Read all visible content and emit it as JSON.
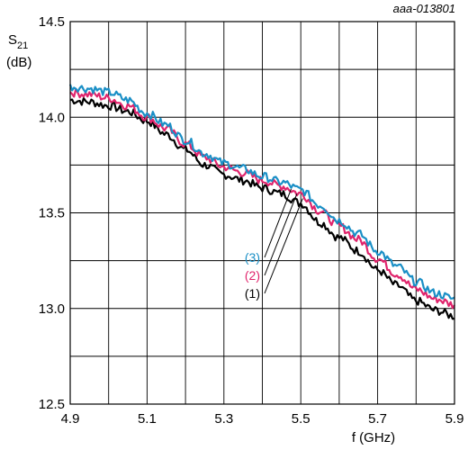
{
  "figure_code": "aaa-013801",
  "chart_data": {
    "type": "line",
    "xlabel": "f (GHz)",
    "ylabel": {
      "main": "S",
      "sub": "21",
      "unit": "(dB)"
    },
    "xlim": [
      4.9,
      5.9
    ],
    "ylim": [
      12.5,
      14.5
    ],
    "x_ticks": [
      "4.9",
      "5.1",
      "5.3",
      "5.5",
      "5.7",
      "5.9"
    ],
    "y_ticks": [
      "12.5",
      "13.0",
      "13.5",
      "14.0",
      "14.5"
    ],
    "x_grid_step": 0.1,
    "y_grid_step": 0.25,
    "grid": true,
    "series": [
      {
        "name": "(1)",
        "color": "#000000",
        "x": [
          4.9,
          4.95,
          5.0,
          5.05,
          5.1,
          5.15,
          5.2,
          5.25,
          5.3,
          5.35,
          5.4,
          5.45,
          5.5,
          5.55,
          5.6,
          5.65,
          5.7,
          5.75,
          5.8,
          5.85,
          5.9
        ],
        "y": [
          14.09,
          14.08,
          14.06,
          14.03,
          13.98,
          13.91,
          13.83,
          13.75,
          13.7,
          13.67,
          13.63,
          13.6,
          13.55,
          13.45,
          13.37,
          13.3,
          13.2,
          13.12,
          13.04,
          12.99,
          12.96
        ]
      },
      {
        "name": "(2)",
        "color": "#e0246c",
        "x": [
          4.9,
          4.95,
          5.0,
          5.05,
          5.1,
          5.15,
          5.2,
          5.25,
          5.3,
          5.35,
          5.4,
          5.45,
          5.5,
          5.55,
          5.6,
          5.65,
          5.7,
          5.75,
          5.8,
          5.85,
          5.9
        ],
        "y": [
          14.13,
          14.12,
          14.1,
          14.06,
          14.0,
          13.94,
          13.86,
          13.79,
          13.74,
          13.71,
          13.67,
          13.64,
          13.6,
          13.51,
          13.43,
          13.36,
          13.26,
          13.18,
          13.1,
          13.05,
          13.02
        ]
      },
      {
        "name": "(3)",
        "color": "#1a8fc6",
        "x": [
          4.9,
          4.95,
          5.0,
          5.05,
          5.1,
          5.15,
          5.2,
          5.25,
          5.3,
          5.35,
          5.4,
          5.45,
          5.5,
          5.55,
          5.6,
          5.65,
          5.7,
          5.75,
          5.8,
          5.85,
          5.9
        ],
        "y": [
          14.16,
          14.15,
          14.13,
          14.09,
          14.02,
          13.96,
          13.88,
          13.81,
          13.76,
          13.73,
          13.69,
          13.66,
          13.62,
          13.54,
          13.46,
          13.39,
          13.3,
          13.22,
          13.14,
          13.08,
          13.05
        ]
      }
    ]
  }
}
